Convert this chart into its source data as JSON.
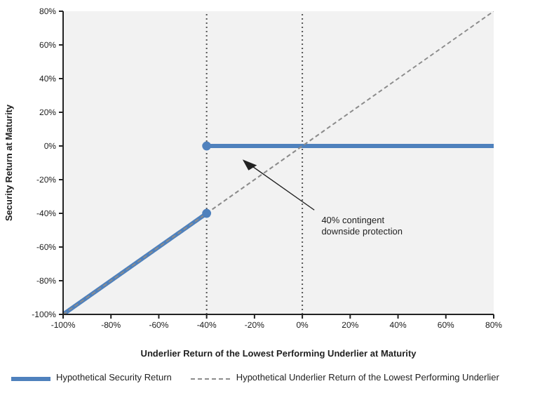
{
  "chart_data": {
    "type": "line",
    "xlabel": "Underlier Return of the Lowest Performing Underlier at Maturity",
    "ylabel": "Security Return at Maturity",
    "xlim": [
      -100,
      80
    ],
    "xticks": [
      {
        "value": -100,
        "label": "-100%"
      },
      {
        "value": -80,
        "label": "-80%"
      },
      {
        "value": -60,
        "label": "-60%"
      },
      {
        "value": -40,
        "label": "-40%"
      },
      {
        "value": -20,
        "label": "-20%"
      },
      {
        "value": 0,
        "label": "0%"
      },
      {
        "value": 20,
        "label": "20%"
      },
      {
        "value": 40,
        "label": "40%"
      },
      {
        "value": 60,
        "label": "60%"
      },
      {
        "value": 80,
        "label": "80%"
      }
    ],
    "ylim": [
      -100,
      80
    ],
    "yticks": [
      {
        "value": -100,
        "label": "-100%"
      },
      {
        "value": -80,
        "label": "-80%"
      },
      {
        "value": -60,
        "label": "-60%"
      },
      {
        "value": -40,
        "label": "-40%"
      },
      {
        "value": -20,
        "label": "-20%"
      },
      {
        "value": 0,
        "label": "0%"
      },
      {
        "value": 20,
        "label": "20%"
      },
      {
        "value": 40,
        "label": "40%"
      },
      {
        "value": 60,
        "label": "60%"
      },
      {
        "value": 80,
        "label": "80%"
      }
    ],
    "series": [
      {
        "name": "Hypothetical Security Return",
        "color": "#4f81bd",
        "line_style": "solid",
        "x": [
          -100,
          -40
        ],
        "values": [
          -100,
          -40
        ]
      },
      {
        "color": "#4f81bd",
        "line_style": "solid",
        "x": [
          -40,
          80
        ],
        "values": [
          0,
          0
        ]
      },
      {
        "name": "Hypothetical Underlier Return of the Lowest Performing Underlier",
        "color": "#8c8c8c",
        "line_style": "dashed",
        "x": [
          -100,
          80
        ],
        "values": [
          -100,
          80
        ]
      },
      {
        "color": "#4f81bd",
        "type": "scatter",
        "marker": "circle",
        "x": [
          -40,
          -40
        ],
        "values": [
          -40,
          0
        ]
      }
    ],
    "ref_lines": [
      {
        "axis": "x",
        "value": -40,
        "color": "#555555",
        "line_style": "dotted"
      },
      {
        "axis": "x",
        "value": 0,
        "color": "#555555",
        "line_style": "dotted"
      }
    ],
    "annotations": [
      "40% contingent downside protection"
    ],
    "grid": false,
    "legend": "bottom"
  }
}
